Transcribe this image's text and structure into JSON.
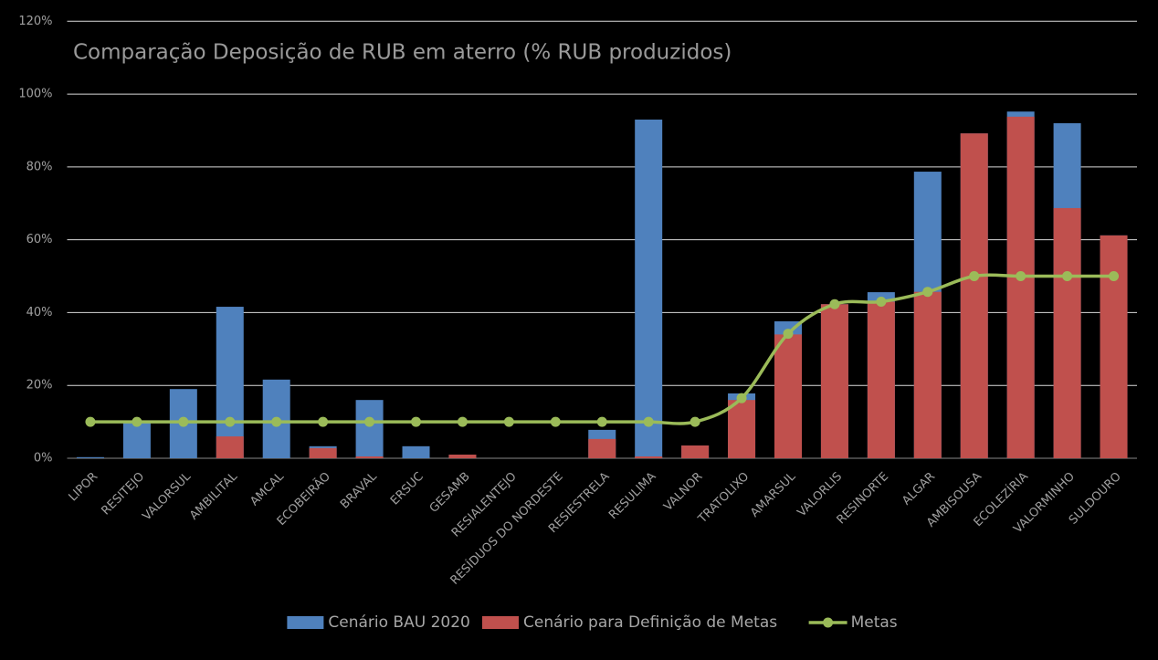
{
  "chart_data": {
    "type": "bar",
    "bar_mode": "overlap",
    "title": "Comparação Deposição de RUB em aterro (% RUB produzidos)",
    "categories": [
      "LIPOR",
      "RESITEJO",
      "VALORSUL",
      "AMBILITAL",
      "AMCAL",
      "ECOBEIRÃO",
      "BRAVAL",
      "ERSUC",
      "GESAMB",
      "RESIALENTEJO",
      "RESÍDUOS DO NORDESTE",
      "RESIESTRELA",
      "RESULIMA",
      "VALNOR",
      "TRATOLIXO",
      "AMARSUL",
      "VALORLIS",
      "RESINORTE",
      "ALGAR",
      "AMBISOUSA",
      "ECOLEZÍRIA",
      "VALORMINHO",
      "SULDOURO"
    ],
    "series": [
      {
        "name": "Cenário BAU 2020",
        "type": "bar",
        "color": "#4f81bd",
        "values": [
          0.3,
          9.8,
          19,
          41.6,
          21.6,
          3.3,
          16,
          3.3,
          1,
          0,
          0,
          7.8,
          93,
          3.5,
          17.8,
          37.6,
          42.3,
          45.6,
          78.7,
          89.2,
          95.2,
          92,
          61.2
        ]
      },
      {
        "name": "Cenário para Definição de Metas",
        "type": "bar",
        "color": "#c0504d",
        "values": [
          0,
          0,
          0,
          6,
          0,
          2.8,
          0.5,
          0,
          1,
          0,
          0,
          5.3,
          0.5,
          3.5,
          16,
          34,
          42.3,
          43,
          45.7,
          89.2,
          93.8,
          68.7,
          61.2
        ]
      },
      {
        "name": "Metas",
        "type": "line",
        "color": "#9bbb59",
        "values": [
          10,
          10,
          10,
          10,
          10,
          10,
          10,
          10,
          10,
          10,
          10,
          10,
          10,
          10,
          16.5,
          34.2,
          42.3,
          43,
          45.7,
          50,
          50,
          50,
          50
        ]
      }
    ],
    "ylim": [
      0,
      120
    ],
    "yticks": [
      {
        "value": 0,
        "label": "0%"
      },
      {
        "value": 20,
        "label": "20%"
      },
      {
        "value": 40,
        "label": "40%"
      },
      {
        "value": 60,
        "label": "60%"
      },
      {
        "value": 80,
        "label": "80%"
      },
      {
        "value": 100,
        "label": "100%"
      },
      {
        "value": 120,
        "label": "120%"
      }
    ],
    "grid": true,
    "legend": "bottom"
  }
}
